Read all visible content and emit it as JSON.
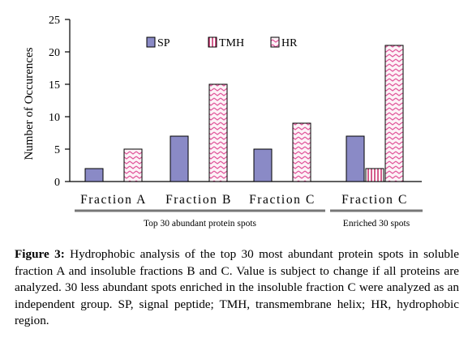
{
  "chart_data": {
    "type": "bar",
    "ylabel": "Number of  Occurences",
    "ylim": [
      0,
      25
    ],
    "yticks": [
      0,
      5,
      10,
      15,
      20,
      25
    ],
    "categories": [
      "Fraction  A",
      "Fraction  B",
      "Fraction  C",
      "Fraction  C"
    ],
    "series": [
      {
        "name": "SP",
        "values": [
          2,
          7,
          5,
          7
        ],
        "pattern": "solid",
        "color": "#8a8ac6"
      },
      {
        "name": "TMH",
        "values": [
          0,
          0,
          0,
          2
        ],
        "pattern": "vertical",
        "color": "#c2185b"
      },
      {
        "name": "HR",
        "values": [
          5,
          15,
          9,
          21
        ],
        "pattern": "zigzag",
        "color": "#e0559a"
      }
    ],
    "groups": [
      {
        "label": "Top 30  abundant protein  spots",
        "categories": [
          0,
          1,
          2
        ]
      },
      {
        "label": "Enriched 30 spots",
        "categories": [
          3
        ]
      }
    ],
    "legend_position": "top"
  },
  "caption": {
    "label": "Figure 3:",
    "text": " Hydrophobic analysis of the top 30 most abundant protein spots in soluble fraction A and insoluble fractions B and C. Value is subject to change if all proteins are analyzed. 30 less abundant spots enriched in the insoluble fraction C were analyzed as an independent group. SP, signal peptide; TMH, transmembrane helix; HR, hydrophobic region."
  }
}
